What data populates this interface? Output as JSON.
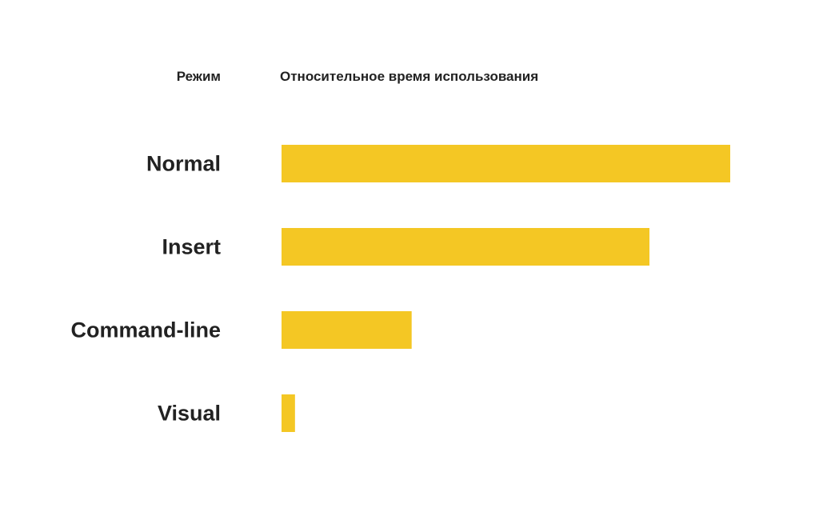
{
  "chart_data": {
    "type": "bar",
    "orientation": "horizontal",
    "category_header": "Режим",
    "value_header": "Относительное время использования",
    "categories": [
      "Normal",
      "Insert",
      "Command-line",
      "Visual"
    ],
    "values": [
      100,
      82,
      29,
      3
    ],
    "xlim": [
      0,
      100
    ],
    "grid": false,
    "legend": "none",
    "bar_color": "#F4C724"
  }
}
